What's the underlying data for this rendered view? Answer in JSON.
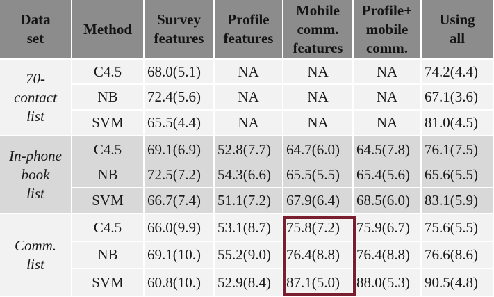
{
  "headers": {
    "dataset": "Data\nset",
    "method": "Method",
    "survey": "Survey\nfeatures",
    "profile": "Profile\nfeatures",
    "mobile": "Mobile\ncomm.\nfeatures",
    "profile_mobile": "Profile+\nmobile\ncomm.",
    "all": "Using\nall"
  },
  "groups": [
    {
      "name": "70-\ncontact\nlist",
      "rows": [
        {
          "method": "C4.5",
          "survey": "68.0(5.1)",
          "profile": "NA",
          "mobile": "NA",
          "profile_mobile": "NA",
          "all": "74.2(4.4)"
        },
        {
          "method": "NB",
          "survey": "72.4(5.6)",
          "profile": "NA",
          "mobile": "NA",
          "profile_mobile": "NA",
          "all": "67.1(3.6)"
        },
        {
          "method": "SVM",
          "survey": "65.5(4.4)",
          "profile": "NA",
          "mobile": "NA",
          "profile_mobile": "NA",
          "all": "81.0(4.5)"
        }
      ]
    },
    {
      "name": "In-phone\nbook\nlist",
      "rows": [
        {
          "method": "C4.5",
          "survey": "69.1(6.9)",
          "profile": "52.8(7.7)",
          "mobile": "64.7(6.0)",
          "profile_mobile": "64.5(7.8)",
          "all": "76.1(7.5)"
        },
        {
          "method": "NB",
          "survey": "72.5(7.2)",
          "profile": "54.3(6.6)",
          "mobile": "65.5(5.5)",
          "profile_mobile": "65.4(5.6)",
          "all": "65.6(5.5)"
        },
        {
          "method": "SVM",
          "survey": "66.7(7.4)",
          "profile": "51.1(7.2)",
          "mobile": "67.9(6.4)",
          "profile_mobile": "68.5(6.0)",
          "all": "83.1(5.9)"
        }
      ]
    },
    {
      "name": "Comm.\nlist",
      "rows": [
        {
          "method": "C4.5",
          "survey": "66.0(9.9)",
          "profile": "53.1(8.7)",
          "mobile": "75.8(7.2)",
          "profile_mobile": "75.9(6.7)",
          "all": "75.6(5.5)"
        },
        {
          "method": "NB",
          "survey": "69.1(10.)",
          "profile": "55.2(9.0)",
          "mobile": "76.4(8.8)",
          "profile_mobile": "76.4(8.8)",
          "all": "76.6(8.6)"
        },
        {
          "method": "SVM",
          "survey": "60.8(10.)",
          "profile": "52.9(8.4)",
          "mobile": "87.1(5.0)",
          "profile_mobile": "88.0(5.3)",
          "all": "90.5(4.8)"
        }
      ]
    }
  ],
  "colors": {
    "header_bg": "#8c8c8c",
    "light_bg": "#f2f2f2",
    "dark_bg": "#d8d8d8",
    "highlight": "#7a1d2f"
  }
}
